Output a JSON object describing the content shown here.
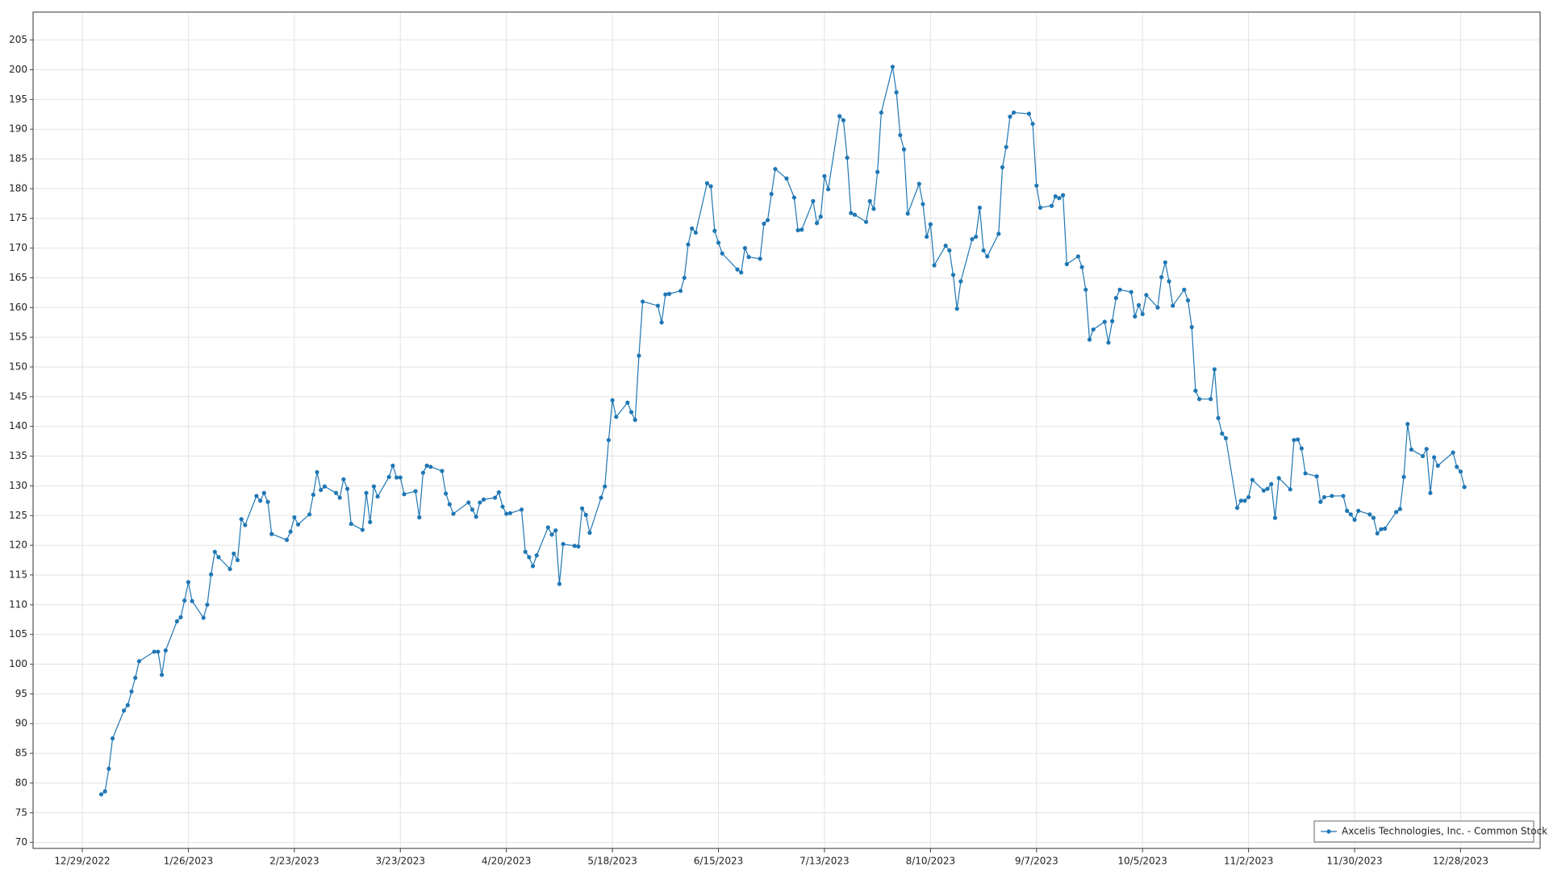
{
  "chart_data": {
    "type": "line",
    "grid": true,
    "legend": "lower right",
    "xlim": [
      "12/16/2022",
      "1/18/2024"
    ],
    "xticks": [
      "12/29/2022",
      "1/26/2023",
      "2/23/2023",
      "3/23/2023",
      "4/20/2023",
      "5/18/2023",
      "6/15/2023",
      "7/13/2023",
      "8/10/2023",
      "9/7/2023",
      "10/5/2023",
      "11/2/2023",
      "11/30/2023",
      "12/28/2023"
    ],
    "ylim": [
      69,
      209.7
    ],
    "yticks": [
      70,
      75,
      80,
      85,
      90,
      95,
      100,
      105,
      110,
      115,
      120,
      125,
      130,
      135,
      140,
      145,
      150,
      155,
      160,
      165,
      170,
      175,
      180,
      185,
      190,
      195,
      200,
      205
    ],
    "x": [
      "1/3/2023",
      "1/4/2023",
      "1/5/2023",
      "1/6/2023",
      "1/9/2023",
      "1/10/2023",
      "1/11/2023",
      "1/12/2023",
      "1/13/2023",
      "1/17/2023",
      "1/18/2023",
      "1/19/2023",
      "1/20/2023",
      "1/23/2023",
      "1/24/2023",
      "1/25/2023",
      "1/26/2023",
      "1/27/2023",
      "1/30/2023",
      "1/31/2023",
      "2/1/2023",
      "2/2/2023",
      "2/3/2023",
      "2/6/2023",
      "2/7/2023",
      "2/8/2023",
      "2/9/2023",
      "2/10/2023",
      "2/13/2023",
      "2/14/2023",
      "2/15/2023",
      "2/16/2023",
      "2/17/2023",
      "2/21/2023",
      "2/22/2023",
      "2/23/2023",
      "2/24/2023",
      "2/27/2023",
      "2/28/2023",
      "3/1/2023",
      "3/2/2023",
      "3/3/2023",
      "3/6/2023",
      "3/7/2023",
      "3/8/2023",
      "3/9/2023",
      "3/10/2023",
      "3/13/2023",
      "3/14/2023",
      "3/15/2023",
      "3/16/2023",
      "3/17/2023",
      "3/20/2023",
      "3/21/2023",
      "3/22/2023",
      "3/23/2023",
      "3/24/2023",
      "3/27/2023",
      "3/28/2023",
      "3/29/2023",
      "3/30/2023",
      "3/31/2023",
      "4/3/2023",
      "4/4/2023",
      "4/5/2023",
      "4/6/2023",
      "4/10/2023",
      "4/11/2023",
      "4/12/2023",
      "4/13/2023",
      "4/14/2023",
      "4/17/2023",
      "4/18/2023",
      "4/19/2023",
      "4/20/2023",
      "4/21/2023",
      "4/24/2023",
      "4/25/2023",
      "4/26/2023",
      "4/27/2023",
      "4/28/2023",
      "5/1/2023",
      "5/2/2023",
      "5/3/2023",
      "5/4/2023",
      "5/5/2023",
      "5/8/2023",
      "5/9/2023",
      "5/10/2023",
      "5/11/2023",
      "5/12/2023",
      "5/15/2023",
      "5/16/2023",
      "5/17/2023",
      "5/18/2023",
      "5/19/2023",
      "5/22/2023",
      "5/23/2023",
      "5/24/2023",
      "5/25/2023",
      "5/26/2023",
      "5/30/2023",
      "5/31/2023",
      "6/1/2023",
      "6/2/2023",
      "6/5/2023",
      "6/6/2023",
      "6/7/2023",
      "6/8/2023",
      "6/9/2023",
      "6/12/2023",
      "6/13/2023",
      "6/14/2023",
      "6/15/2023",
      "6/16/2023",
      "6/20/2023",
      "6/21/2023",
      "6/22/2023",
      "6/23/2023",
      "6/26/2023",
      "6/27/2023",
      "6/28/2023",
      "6/29/2023",
      "6/30/2023",
      "7/3/2023",
      "7/5/2023",
      "7/6/2023",
      "7/7/2023",
      "7/10/2023",
      "7/11/2023",
      "7/12/2023",
      "7/13/2023",
      "7/14/2023",
      "7/17/2023",
      "7/18/2023",
      "7/19/2023",
      "7/20/2023",
      "7/21/2023",
      "7/24/2023",
      "7/25/2023",
      "7/26/2023",
      "7/27/2023",
      "7/28/2023",
      "7/31/2023",
      "8/1/2023",
      "8/2/2023",
      "8/3/2023",
      "8/4/2023",
      "8/7/2023",
      "8/8/2023",
      "8/9/2023",
      "8/10/2023",
      "8/11/2023",
      "8/14/2023",
      "8/15/2023",
      "8/16/2023",
      "8/17/2023",
      "8/18/2023",
      "8/21/2023",
      "8/22/2023",
      "8/23/2023",
      "8/24/2023",
      "8/25/2023",
      "8/28/2023",
      "8/29/2023",
      "8/30/2023",
      "8/31/2023",
      "9/1/2023",
      "9/5/2023",
      "9/6/2023",
      "9/7/2023",
      "9/8/2023",
      "9/11/2023",
      "9/12/2023",
      "9/13/2023",
      "9/14/2023",
      "9/15/2023",
      "9/18/2023",
      "9/19/2023",
      "9/20/2023",
      "9/21/2023",
      "9/22/2023",
      "9/25/2023",
      "9/26/2023",
      "9/27/2023",
      "9/28/2023",
      "9/29/2023",
      "10/2/2023",
      "10/3/2023",
      "10/4/2023",
      "10/5/2023",
      "10/6/2023",
      "10/9/2023",
      "10/10/2023",
      "10/11/2023",
      "10/12/2023",
      "10/13/2023",
      "10/16/2023",
      "10/17/2023",
      "10/18/2023",
      "10/19/2023",
      "10/20/2023",
      "10/23/2023",
      "10/24/2023",
      "10/25/2023",
      "10/26/2023",
      "10/27/2023",
      "10/30/2023",
      "10/31/2023",
      "11/1/2023",
      "11/2/2023",
      "11/3/2023",
      "11/6/2023",
      "11/7/2023",
      "11/8/2023",
      "11/9/2023",
      "11/10/2023",
      "11/13/2023",
      "11/14/2023",
      "11/15/2023",
      "11/16/2023",
      "11/17/2023",
      "11/20/2023",
      "11/21/2023",
      "11/22/2023",
      "11/24/2023",
      "11/27/2023",
      "11/28/2023",
      "11/29/2023",
      "11/30/2023",
      "12/1/2023",
      "12/4/2023",
      "12/5/2023",
      "12/6/2023",
      "12/7/2023",
      "12/8/2023",
      "12/11/2023",
      "12/12/2023",
      "12/13/2023",
      "12/14/2023",
      "12/15/2023",
      "12/18/2023",
      "12/19/2023",
      "12/20/2023",
      "12/21/2023",
      "12/22/2023",
      "12/26/2023",
      "12/27/2023",
      "12/28/2023",
      "12/29/2023"
    ],
    "series": [
      {
        "name": "Axcelis Technologies, Inc. - Common Stock",
        "color": "#1f77b4",
        "values": [
          78.1,
          78.6,
          82.4,
          87.5,
          92.2,
          93.1,
          95.4,
          97.7,
          100.5,
          102.1,
          102.1,
          98.2,
          102.3,
          107.2,
          107.9,
          110.7,
          113.8,
          110.6,
          107.8,
          110.0,
          115.1,
          118.9,
          118.0,
          116.0,
          118.6,
          117.5,
          124.4,
          123.4,
          128.3,
          127.5,
          128.8,
          127.3,
          121.9,
          120.9,
          122.3,
          124.7,
          123.5,
          125.2,
          128.5,
          132.3,
          129.3,
          129.9,
          128.8,
          128.0,
          131.1,
          129.5,
          123.6,
          122.6,
          128.8,
          123.9,
          129.9,
          128.2,
          131.5,
          133.4,
          131.4,
          131.4,
          128.6,
          129.1,
          124.7,
          132.2,
          133.4,
          133.2,
          132.5,
          128.7,
          126.9,
          125.3,
          127.2,
          126.0,
          124.8,
          127.2,
          127.7,
          128.0,
          128.9,
          126.5,
          125.3,
          125.4,
          126.0,
          118.9,
          118.0,
          116.5,
          118.3,
          123.0,
          121.8,
          122.5,
          113.5,
          120.2,
          119.9,
          119.8,
          126.2,
          125.1,
          122.1,
          128.0,
          129.9,
          137.7,
          144.4,
          141.6,
          144.0,
          142.4,
          141.1,
          151.9,
          161.0,
          160.3,
          157.5,
          162.2,
          162.3,
          162.8,
          165.0,
          170.6,
          173.3,
          172.6,
          180.9,
          180.4,
          172.9,
          170.9,
          169.1,
          166.4,
          165.9,
          170.0,
          168.5,
          168.2,
          174.1,
          174.7,
          179.1,
          183.3,
          181.7,
          178.5,
          173.0,
          173.1,
          177.9,
          174.2,
          175.3,
          182.1,
          179.9,
          192.2,
          191.5,
          185.2,
          175.9,
          175.6,
          174.4,
          177.9,
          176.6,
          182.8,
          192.8,
          200.5,
          196.2,
          189.0,
          186.6,
          175.8,
          180.8,
          177.4,
          171.9,
          174.0,
          167.1,
          170.4,
          169.6,
          165.5,
          159.8,
          164.4,
          171.5,
          171.9,
          176.8,
          169.6,
          168.6,
          172.4,
          183.6,
          187.0,
          192.1,
          192.8,
          192.6,
          190.9,
          180.5,
          176.8,
          177.1,
          178.7,
          178.4,
          178.9,
          167.3,
          168.6,
          166.8,
          163.0,
          154.6,
          156.3,
          157.6,
          154.1,
          157.7,
          161.6,
          163.0,
          162.6,
          158.5,
          160.4,
          158.9,
          162.1,
          160.0,
          165.1,
          167.6,
          164.4,
          160.3,
          163.0,
          161.2,
          156.7,
          146.0,
          144.6,
          144.6,
          149.6,
          141.4,
          138.8,
          138.0,
          126.3,
          127.5,
          127.5,
          128.1,
          131.0,
          129.2,
          129.5,
          130.3,
          124.6,
          131.3,
          129.4,
          137.7,
          137.8,
          136.3,
          132.1,
          131.6,
          127.3,
          128.1,
          128.3,
          128.3,
          125.8,
          125.2,
          124.3,
          125.8,
          125.2,
          124.6,
          122.0,
          122.7,
          122.8,
          125.6,
          126.1,
          131.5,
          140.4,
          136.1,
          135.0,
          136.2,
          128.8,
          134.8,
          133.4,
          135.6,
          133.2,
          132.4,
          129.8
        ]
      }
    ]
  }
}
